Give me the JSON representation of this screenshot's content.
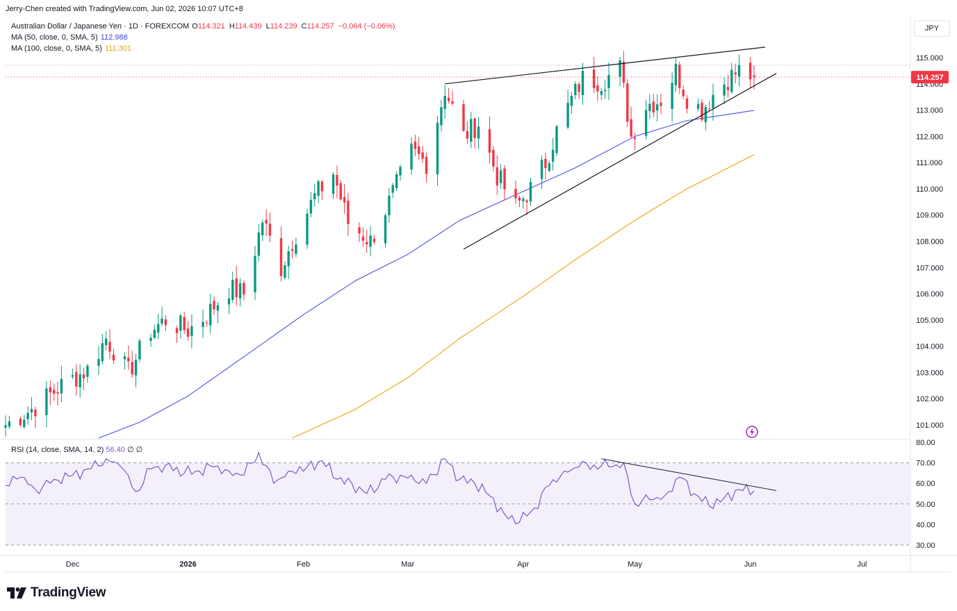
{
  "header": {
    "credit": "Jerry-Chen created with TradingView.com, Jun 02, 2026 10:07 UTC+8",
    "symbol": "Australian Dollar / Japanese Yen · 1D · FOREXCOM",
    "o_label": "O",
    "o_value": "114.321",
    "h_label": "H",
    "h_value": "114.439",
    "l_label": "L",
    "l_value": "114.239",
    "c_label": "C",
    "c_value": "114.257",
    "change": "−0.064 (−0.06%)",
    "ma50_label": "MA (50, close, 0, SMA, 5)",
    "ma50_value": "112.988",
    "ma100_label": "MA (100, close, 0, SMA, 5)",
    "ma100_value": "111.301",
    "rsi_label": "RSI (14, close, SMA, 14, 2)",
    "rsi_value": "56.40",
    "rsi_extra1": "∅",
    "rsi_extra2": "∅",
    "currency": "JPY",
    "price_tag": "114.257"
  },
  "branding": {
    "logo_text": "TradingView",
    "logo_icon": "tradingview-logo-icon",
    "alert_icon": "lightning-icon"
  },
  "colors": {
    "up": "#089981",
    "down": "#f23645",
    "ma50": "#5b5fe6",
    "ma100": "#f5a623",
    "rsi_line": "#7e57c2",
    "rsi_band": "#f3f0fc",
    "trendline": "#131722"
  },
  "chart_data": [
    {
      "type": "candlestick",
      "title": "Australian Dollar / Japanese Yen · 1D · FOREXCOM",
      "x_range": [
        "2025-11-13",
        "2026-07-14"
      ],
      "x_ticks": [
        "Dec",
        "2026",
        "Feb",
        "Mar",
        "Apr",
        "May",
        "Jun",
        "Jul"
      ],
      "y_ticks": [
        "101.000",
        "102.000",
        "103.000",
        "104.000",
        "105.000",
        "106.000",
        "107.000",
        "108.000",
        "109.000",
        "110.000",
        "111.000",
        "112.000",
        "113.000",
        "114.000",
        "115.000"
      ],
      "y_range": [
        100.5,
        116.0
      ],
      "last_close": 114.257,
      "close_path": [
        [
          "2025-11-13",
          101.0
        ],
        [
          "2025-11-20",
          101.6
        ],
        [
          "2025-11-28",
          102.5
        ],
        [
          "2025-12-05",
          103.1
        ],
        [
          "2025-12-10",
          104.3
        ],
        [
          "2025-12-16",
          103.0
        ],
        [
          "2025-12-22",
          104.6
        ],
        [
          "2025-12-26",
          105.0
        ],
        [
          "2026-01-01",
          104.6
        ],
        [
          "2026-01-06",
          105.2
        ],
        [
          "2026-01-12",
          106.2
        ],
        [
          "2026-01-16",
          106.0
        ],
        [
          "2026-01-21",
          108.8
        ],
        [
          "2026-01-26",
          107.0
        ],
        [
          "2026-01-29",
          108.0
        ],
        [
          "2026-02-04",
          109.7
        ],
        [
          "2026-02-09",
          110.6
        ],
        [
          "2026-02-13",
          108.7
        ],
        [
          "2026-02-19",
          108.0
        ],
        [
          "2026-02-24",
          109.5
        ],
        [
          "2026-03-02",
          111.4
        ],
        [
          "2026-03-06",
          111.0
        ],
        [
          "2026-03-11",
          113.8
        ],
        [
          "2026-03-16",
          112.0
        ],
        [
          "2026-03-20",
          112.5
        ],
        [
          "2026-03-25",
          110.5
        ],
        [
          "2026-03-30",
          109.3
        ],
        [
          "2026-04-03",
          110.0
        ],
        [
          "2026-04-07",
          111.0
        ],
        [
          "2026-04-10",
          112.2
        ],
        [
          "2026-04-14",
          113.4
        ],
        [
          "2026-04-17",
          114.2
        ],
        [
          "2026-04-22",
          114.1
        ],
        [
          "2026-04-27",
          114.6
        ],
        [
          "2026-04-30",
          112.0
        ],
        [
          "2026-05-04",
          113.2
        ],
        [
          "2026-05-08",
          113.4
        ],
        [
          "2026-05-12",
          114.5
        ],
        [
          "2026-05-15",
          113.5
        ],
        [
          "2026-05-19",
          113.0
        ],
        [
          "2026-05-22",
          113.6
        ],
        [
          "2026-05-26",
          114.2
        ],
        [
          "2026-05-29",
          114.5
        ],
        [
          "2026-06-02",
          114.257
        ]
      ],
      "ma50": [
        [
          "2025-12-08",
          100.5
        ],
        [
          "2025-12-19",
          101.1
        ],
        [
          "2026-01-01",
          102.1
        ],
        [
          "2026-01-15",
          103.5
        ],
        [
          "2026-02-01",
          105.2
        ],
        [
          "2026-02-15",
          106.5
        ],
        [
          "2026-03-01",
          107.5
        ],
        [
          "2026-03-15",
          108.8
        ],
        [
          "2026-04-01",
          109.9
        ],
        [
          "2026-04-15",
          110.8
        ],
        [
          "2026-05-01",
          112.0
        ],
        [
          "2026-05-15",
          112.6
        ],
        [
          "2026-06-02",
          112.988
        ]
      ],
      "ma100": [
        [
          "2026-01-29",
          100.5
        ],
        [
          "2026-02-15",
          101.6
        ],
        [
          "2026-03-01",
          102.8
        ],
        [
          "2026-03-15",
          104.3
        ],
        [
          "2026-04-01",
          105.9
        ],
        [
          "2026-04-15",
          107.3
        ],
        [
          "2026-05-01",
          108.8
        ],
        [
          "2026-05-15",
          110.0
        ],
        [
          "2026-06-02",
          111.301
        ]
      ],
      "trendlines": [
        {
          "name": "upper",
          "from": [
            "2026-03-11",
            114.0
          ],
          "to": [
            "2026-06-05",
            115.4
          ]
        },
        {
          "name": "lower",
          "from": [
            "2026-03-16",
            107.7
          ],
          "to": [
            "2026-06-08",
            114.4
          ]
        }
      ]
    },
    {
      "type": "line",
      "title": "RSI (14, close, SMA, 14, 2)",
      "y_ticks": [
        "30.00",
        "40.00",
        "50.00",
        "60.00",
        "70.00",
        "80.00"
      ],
      "y_range": [
        30,
        80
      ],
      "band": [
        30,
        70
      ],
      "midline": 50,
      "last_value": 56.4,
      "values": [
        [
          "2025-11-13",
          59
        ],
        [
          "2025-11-17",
          63
        ],
        [
          "2025-11-21",
          57
        ],
        [
          "2025-11-26",
          62
        ],
        [
          "2025-12-01",
          64
        ],
        [
          "2025-12-05",
          67
        ],
        [
          "2025-12-10",
          72
        ],
        [
          "2025-12-14",
          68
        ],
        [
          "2025-12-18",
          56
        ],
        [
          "2025-12-22",
          67
        ],
        [
          "2025-12-26",
          69
        ],
        [
          "2025-12-31",
          65
        ],
        [
          "2026-01-04",
          66
        ],
        [
          "2026-01-08",
          68
        ],
        [
          "2026-01-12",
          66
        ],
        [
          "2026-01-16",
          64
        ],
        [
          "2026-01-20",
          75
        ],
        [
          "2026-01-24",
          60
        ],
        [
          "2026-01-28",
          66
        ],
        [
          "2026-02-02",
          68
        ],
        [
          "2026-02-06",
          71
        ],
        [
          "2026-02-10",
          62
        ],
        [
          "2026-02-14",
          60
        ],
        [
          "2026-02-18",
          55
        ],
        [
          "2026-02-23",
          62
        ],
        [
          "2026-02-27",
          64
        ],
        [
          "2026-03-03",
          61
        ],
        [
          "2026-03-06",
          60
        ],
        [
          "2026-03-11",
          72
        ],
        [
          "2026-03-15",
          62
        ],
        [
          "2026-03-19",
          60
        ],
        [
          "2026-03-23",
          54
        ],
        [
          "2026-03-27",
          45
        ],
        [
          "2026-03-31",
          41
        ],
        [
          "2026-04-04",
          48
        ],
        [
          "2026-04-08",
          59
        ],
        [
          "2026-04-12",
          66
        ],
        [
          "2026-04-16",
          68
        ],
        [
          "2026-04-20",
          69
        ],
        [
          "2026-04-24",
          68
        ],
        [
          "2026-04-28",
          70
        ],
        [
          "2026-05-01",
          50
        ],
        [
          "2026-05-05",
          52
        ],
        [
          "2026-05-09",
          54
        ],
        [
          "2026-05-13",
          63
        ],
        [
          "2026-05-17",
          55
        ],
        [
          "2026-05-21",
          49
        ],
        [
          "2026-05-25",
          53
        ],
        [
          "2026-05-29",
          57
        ],
        [
          "2026-06-02",
          56.4
        ]
      ],
      "trendline": {
        "from": [
          "2026-04-22",
          72
        ],
        "to": [
          "2026-06-08",
          56.5
        ]
      }
    }
  ]
}
